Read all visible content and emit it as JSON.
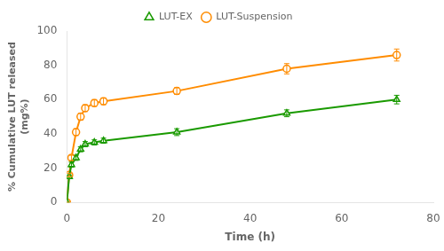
{
  "chart_data": {
    "type": "line",
    "xlabel": "Time (h)",
    "ylabel": "% Cumulative LUT released\n(mg%)",
    "x": [
      0,
      0.5,
      1,
      2,
      3,
      4,
      6,
      8,
      24,
      48,
      72
    ],
    "series": [
      {
        "name": "LUT-EX",
        "color": "#1a9a00",
        "marker": "triangle",
        "values": [
          0,
          15,
          22,
          26,
          31,
          34,
          35,
          36,
          41,
          52,
          60
        ],
        "errors": [
          0,
          1.0,
          1.5,
          1.5,
          1.5,
          1.5,
          1.5,
          1.5,
          2.0,
          2.0,
          2.5
        ]
      },
      {
        "name": "LUT-Suspension",
        "color": "#ff8c00",
        "marker": "circle",
        "values": [
          0,
          16,
          26,
          41,
          50,
          55,
          58,
          59,
          65,
          78,
          86
        ],
        "errors": [
          0,
          1.0,
          1.5,
          2.0,
          2.0,
          2.0,
          2.0,
          2.0,
          2.0,
          3.0,
          3.5
        ]
      }
    ],
    "xlim": [
      0,
      80
    ],
    "ylim": [
      0,
      100
    ],
    "xticks": [
      0,
      20,
      40,
      60,
      80
    ],
    "yticks": [
      0,
      20,
      40,
      60,
      80,
      100
    ],
    "grid": false,
    "legend": "top"
  }
}
